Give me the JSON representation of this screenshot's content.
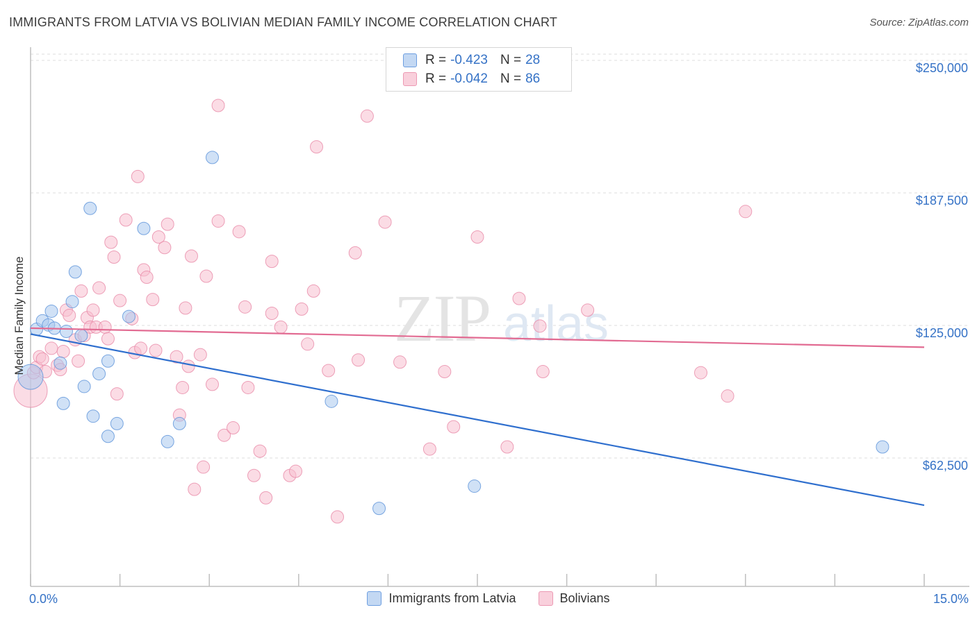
{
  "title": "IMMIGRANTS FROM LATVIA VS BOLIVIAN MEDIAN FAMILY INCOME CORRELATION CHART",
  "source": "Source: ZipAtlas.com",
  "watermark": {
    "zip": "ZIP",
    "atlas": "atlas"
  },
  "legend": {
    "rows": [
      {
        "r_label": "R =",
        "r_value": "-0.423",
        "n_label": "N =",
        "n_value": "28"
      },
      {
        "r_label": "R =",
        "r_value": "-0.042",
        "n_label": "N =",
        "n_value": "86"
      }
    ]
  },
  "colors": {
    "latvia_fill": "#a9c8ee",
    "latvia_stroke": "#5b92d9",
    "latvia_line": "#2f6fce",
    "bolivian_fill": "#f7bfd0",
    "bolivian_stroke": "#e88aa7",
    "bolivian_line": "#e26b92",
    "tick_label": "#3572c6",
    "grid": "#dddddd"
  },
  "chart_data": {
    "type": "scatter",
    "title": "IMMIGRANTS FROM LATVIA VS BOLIVIAN MEDIAN FAMILY INCOME CORRELATION CHART",
    "xlabel": "",
    "ylabel": "Median Family Income",
    "xlim": [
      0,
      15
    ],
    "ylim": [
      0,
      262500
    ],
    "x_tick_labels": [
      "0.0%",
      "15.0%"
    ],
    "y_ticks": [
      {
        "value": 62500,
        "label": "$62,500"
      },
      {
        "value": 125000,
        "label": "$125,000"
      },
      {
        "value": 187500,
        "label": "$187,500"
      },
      {
        "value": 250000,
        "label": "$250,000"
      }
    ],
    "grid": true,
    "series": [
      {
        "name": "Immigrants from Latvia",
        "R": -0.423,
        "N": 28,
        "trend": {
          "x": [
            0.0,
            15.0
          ],
          "y": [
            124200,
            43500
          ]
        },
        "points": [
          [
            0.1,
            126500,
            9
          ],
          [
            0.2,
            130500,
            9
          ],
          [
            0.3,
            128500,
            9
          ],
          [
            0.35,
            135000,
            9
          ],
          [
            0.4,
            127000,
            9
          ],
          [
            0.5,
            110500,
            9
          ],
          [
            0.55,
            91500,
            9
          ],
          [
            0.6,
            125500,
            9
          ],
          [
            0.7,
            139500,
            9
          ],
          [
            0.75,
            153500,
            9
          ],
          [
            0.85,
            123500,
            9
          ],
          [
            0.9,
            99500,
            9
          ],
          [
            1.0,
            183500,
            9
          ],
          [
            1.05,
            85500,
            9
          ],
          [
            1.15,
            105500,
            9
          ],
          [
            1.3,
            76000,
            9
          ],
          [
            1.45,
            82000,
            9
          ],
          [
            1.3,
            111500,
            9
          ],
          [
            1.65,
            132500,
            9
          ],
          [
            1.9,
            174000,
            9
          ],
          [
            2.3,
            73500,
            9
          ],
          [
            2.5,
            82000,
            9
          ],
          [
            3.05,
            207500,
            9
          ],
          [
            5.05,
            92500,
            9
          ],
          [
            5.85,
            42000,
            9
          ],
          [
            7.45,
            52500,
            9
          ],
          [
            14.3,
            71000,
            9
          ],
          [
            0.0,
            104000,
            18
          ]
        ]
      },
      {
        "name": "Bolivians",
        "R": -0.042,
        "N": 86,
        "trend": {
          "x": [
            0.0,
            15.0
          ],
          "y": [
            127000,
            118000
          ]
        },
        "points": [
          [
            0.0,
            97500,
            24
          ],
          [
            0.05,
            106000,
            9
          ],
          [
            0.1,
            108500,
            9
          ],
          [
            0.15,
            113500,
            9
          ],
          [
            0.2,
            112500,
            9
          ],
          [
            0.25,
            106500,
            9
          ],
          [
            0.35,
            117500,
            9
          ],
          [
            0.45,
            109500,
            9
          ],
          [
            0.5,
            107500,
            9
          ],
          [
            0.55,
            116000,
            9
          ],
          [
            0.6,
            135500,
            9
          ],
          [
            0.65,
            133000,
            9
          ],
          [
            0.75,
            121500,
            9
          ],
          [
            0.8,
            111500,
            9
          ],
          [
            0.85,
            144500,
            9
          ],
          [
            0.9,
            123500,
            9
          ],
          [
            0.95,
            132000,
            9
          ],
          [
            1.0,
            127500,
            9
          ],
          [
            1.05,
            135500,
            9
          ],
          [
            1.1,
            127500,
            9
          ],
          [
            1.15,
            146000,
            9
          ],
          [
            1.25,
            127500,
            9
          ],
          [
            1.3,
            122000,
            9
          ],
          [
            1.35,
            167500,
            9
          ],
          [
            1.4,
            160500,
            9
          ],
          [
            1.45,
            96000,
            9
          ],
          [
            1.5,
            140000,
            9
          ],
          [
            1.6,
            178000,
            9
          ],
          [
            1.7,
            131500,
            9
          ],
          [
            1.75,
            115500,
            9
          ],
          [
            1.8,
            198500,
            9
          ],
          [
            1.85,
            117500,
            9
          ],
          [
            1.9,
            154500,
            9
          ],
          [
            1.95,
            151000,
            9
          ],
          [
            2.05,
            140500,
            9
          ],
          [
            2.1,
            116500,
            9
          ],
          [
            2.15,
            170000,
            9
          ],
          [
            2.25,
            165000,
            9
          ],
          [
            2.3,
            176000,
            9
          ],
          [
            2.45,
            113500,
            9
          ],
          [
            2.5,
            86000,
            9
          ],
          [
            2.55,
            99000,
            9
          ],
          [
            2.6,
            136500,
            9
          ],
          [
            2.65,
            109000,
            9
          ],
          [
            2.7,
            161000,
            9
          ],
          [
            2.75,
            51000,
            9
          ],
          [
            2.85,
            114500,
            9
          ],
          [
            2.9,
            61500,
            9
          ],
          [
            2.95,
            151500,
            9
          ],
          [
            3.05,
            100500,
            9
          ],
          [
            3.15,
            177500,
            9
          ],
          [
            3.25,
            76500,
            9
          ],
          [
            3.4,
            80000,
            9
          ],
          [
            3.5,
            172500,
            9
          ],
          [
            3.6,
            137000,
            9
          ],
          [
            3.65,
            99000,
            9
          ],
          [
            3.75,
            57500,
            9
          ],
          [
            3.85,
            69000,
            9
          ],
          [
            3.95,
            47000,
            9
          ],
          [
            4.05,
            158500,
            9
          ],
          [
            4.05,
            134000,
            9
          ],
          [
            4.2,
            127500,
            9
          ],
          [
            4.35,
            57500,
            9
          ],
          [
            4.45,
            59500,
            9
          ],
          [
            4.55,
            136000,
            9
          ],
          [
            4.65,
            119500,
            9
          ],
          [
            4.75,
            144500,
            9
          ],
          [
            4.8,
            212500,
            9
          ],
          [
            5.0,
            107000,
            9
          ],
          [
            5.15,
            38000,
            9
          ],
          [
            5.45,
            162500,
            9
          ],
          [
            5.5,
            112000,
            9
          ],
          [
            5.65,
            227000,
            9
          ],
          [
            5.95,
            177000,
            9
          ],
          [
            6.2,
            111000,
            9
          ],
          [
            6.7,
            70000,
            9
          ],
          [
            6.95,
            106500,
            9
          ],
          [
            7.1,
            80500,
            9
          ],
          [
            7.5,
            170000,
            9
          ],
          [
            8.0,
            71000,
            9
          ],
          [
            8.2,
            141000,
            9
          ],
          [
            8.55,
            128000,
            9
          ],
          [
            8.6,
            106500,
            9
          ],
          [
            9.35,
            135500,
            9
          ],
          [
            11.25,
            106000,
            9
          ],
          [
            11.7,
            95000,
            9
          ],
          [
            12.0,
            182000,
            9
          ],
          [
            3.15,
            232000,
            9
          ]
        ]
      }
    ],
    "legend_position": "top-center"
  },
  "bottom_legend": {
    "items": [
      "Immigrants from Latvia",
      "Bolivians"
    ]
  }
}
